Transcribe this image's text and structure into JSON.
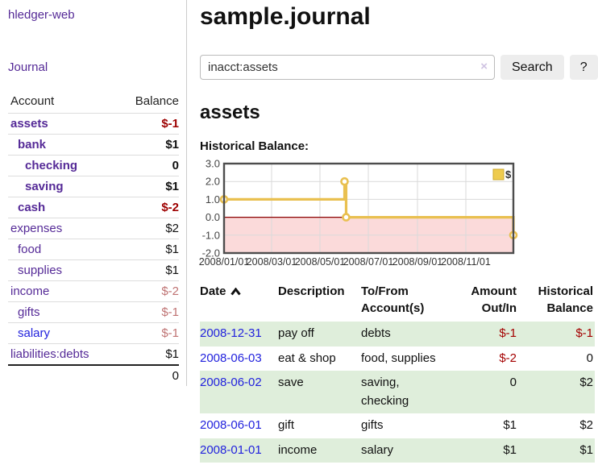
{
  "app": {
    "title": "hledger-web"
  },
  "sidebar": {
    "journal_label": "Journal",
    "accounts_table": {
      "account_header": "Account",
      "balance_header": "Balance",
      "rows": [
        {
          "name": "assets",
          "balance": "$-1",
          "indent": 1,
          "bold": true
        },
        {
          "name": "bank",
          "balance": "$1",
          "indent": 2,
          "bold": true
        },
        {
          "name": "checking",
          "balance": "0",
          "indent": 3,
          "bold": true
        },
        {
          "name": "saving",
          "balance": "$1",
          "indent": 3,
          "bold": true
        },
        {
          "name": "cash",
          "balance": "$-2",
          "indent": 2,
          "bold": true
        },
        {
          "name": "expenses",
          "balance": "$2",
          "indent": 1,
          "bold": false
        },
        {
          "name": "food",
          "balance": "$1",
          "indent": 2,
          "bold": false
        },
        {
          "name": "supplies",
          "balance": "$1",
          "indent": 2,
          "bold": false
        },
        {
          "name": "income",
          "balance": "$-2",
          "indent": 1,
          "bold": false
        },
        {
          "name": "gifts",
          "balance": "$-1",
          "indent": 2,
          "bold": false
        },
        {
          "name": "salary",
          "balance": "$-1",
          "indent": 2,
          "bold": false,
          "link_color": "blue"
        },
        {
          "name": "liabilities:debts",
          "balance": "$1",
          "indent": 1,
          "bold": false
        }
      ],
      "total": "0"
    }
  },
  "header": {
    "title": "sample.journal"
  },
  "search": {
    "value": "inacct:assets",
    "clear_icon": "×",
    "button_label": "Search",
    "help_label": "?"
  },
  "register": {
    "account_heading": "assets",
    "chart_label": "Historical Balance:",
    "table": {
      "headers": {
        "date": "Date",
        "description": "Description",
        "accounts": "To/From Account(s)",
        "amount": "Amount Out/In",
        "balance": "Historical Balance"
      },
      "sort_icon": "chevron-up",
      "rows": [
        {
          "date": "2008-12-31",
          "description": "pay off",
          "accounts": "debts",
          "amount": "$-1",
          "balance": "$-1"
        },
        {
          "date": "2008-06-03",
          "description": "eat & shop",
          "accounts": "food, supplies",
          "amount": "$-2",
          "balance": "0"
        },
        {
          "date": "2008-06-02",
          "description": "save",
          "accounts": "saving, checking",
          "amount": "0",
          "balance": "$2"
        },
        {
          "date": "2008-06-01",
          "description": "gift",
          "accounts": "gifts",
          "amount": "$1",
          "balance": "$2"
        },
        {
          "date": "2008-01-01",
          "description": "income",
          "accounts": "salary",
          "amount": "$1",
          "balance": "$1"
        }
      ]
    }
  },
  "chart_data": {
    "type": "line",
    "step": true,
    "title": "Historical Balance",
    "series": [
      {
        "name": "$",
        "values": [
          1,
          2,
          2,
          0,
          -1
        ]
      }
    ],
    "x": [
      "2008-01-01",
      "2008-06-01",
      "2008-06-02",
      "2008-06-03",
      "2008-12-31"
    ],
    "marker_indices": [
      0,
      1,
      3,
      4
    ],
    "xlabel": "",
    "ylabel": "",
    "ylim": [
      -2,
      3
    ],
    "yticks": [
      3,
      2,
      1,
      0,
      -1,
      -2
    ],
    "ytick_labels": [
      "3.0",
      "2.0",
      "1.0",
      "0.0",
      "-1.0",
      "-2.0"
    ],
    "xticks": [
      "2008/01/01",
      "2008/03/01",
      "2008/05/01",
      "2008/07/01",
      "2008/09/01",
      "2008/11/01"
    ],
    "xrange": [
      "2008-01-01",
      "2008-12-31"
    ],
    "grid": true,
    "legend_position": "top-right",
    "negative_region_shaded": true
  },
  "colors": {
    "purple_link": "#552a97",
    "blue_link": "#2222dd",
    "negative_dark": "#9d0000",
    "negative_light": "#bf7373",
    "table_negative": "#a40000",
    "row_highlight_green": "#dfeedb",
    "chart_line": "#e9c050",
    "chart_negative_fill": "#fbdada",
    "chart_zero_line": "#8b0000",
    "chart_grid": "#d9d9d9",
    "chart_border": "#4d4d4d",
    "button_bg": "#ededed"
  }
}
